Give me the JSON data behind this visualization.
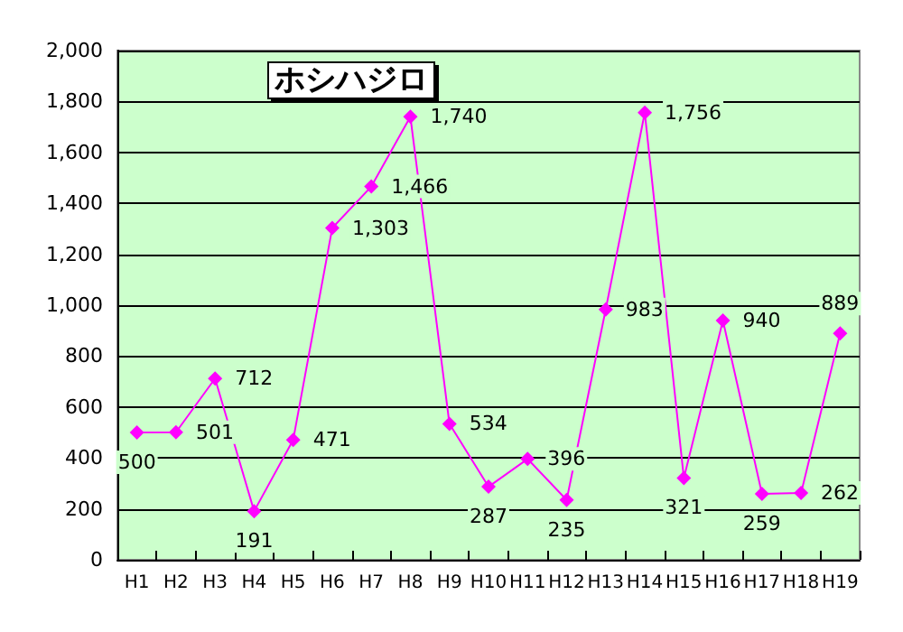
{
  "chart_data": {
    "type": "line",
    "title": "ホシハジロ",
    "categories": [
      "H1",
      "H2",
      "H3",
      "H4",
      "H5",
      "H6",
      "H7",
      "H8",
      "H9",
      "H10",
      "H11",
      "H12",
      "H13",
      "H14",
      "H15",
      "H16",
      "H17",
      "H18",
      "H19"
    ],
    "series": [
      {
        "color": "#ff00ff",
        "values": [
          500,
          501,
          712,
          191,
          471,
          1303,
          1466,
          1740,
          534,
          287,
          396,
          235,
          983,
          1756,
          321,
          940,
          259,
          262,
          889
        ],
        "value_labels": [
          "500",
          "501",
          "712",
          "191",
          "471",
          "1,303",
          "1,466",
          "1,740",
          "534",
          "287",
          "396",
          "235",
          "983",
          "1,756",
          "321",
          "940",
          "259",
          "262",
          "889"
        ]
      }
    ],
    "ylim": [
      0,
      2000
    ],
    "yticks": [
      0,
      200,
      400,
      600,
      800,
      {
        "value": 1000,
        "label": "1,000"
      },
      {
        "value": 1200,
        "label": "1,200"
      },
      {
        "value": 1400,
        "label": "1,400"
      },
      {
        "value": 1600,
        "label": "1,600"
      },
      {
        "value": 1800,
        "label": "1,800"
      },
      {
        "value": 2000,
        "label": "2,000"
      }
    ],
    "grid": "y",
    "marker": "diamond",
    "line_style": "solid"
  }
}
